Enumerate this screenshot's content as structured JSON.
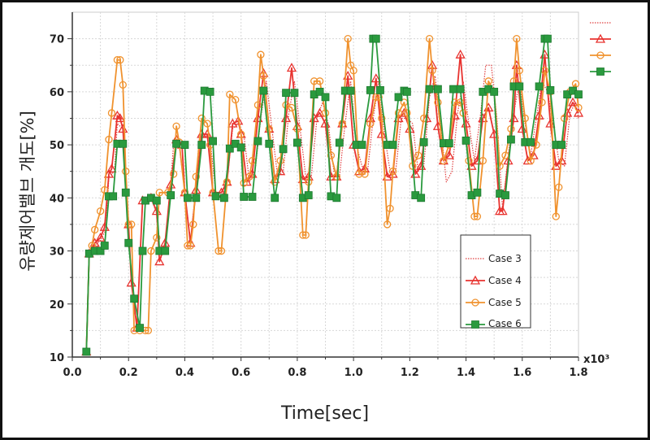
{
  "chart_data": {
    "type": "line",
    "xlabel": "Time[sec]",
    "ylabel": "유량제어밸브 개도[%]",
    "x_multiplier": "x10³",
    "xlim": [
      0.0,
      1.8
    ],
    "ylim": [
      10,
      75
    ],
    "xticks": [
      "0.0",
      "0.2",
      "0.4",
      "0.6",
      "0.8",
      "1.0",
      "1.2",
      "1.4",
      "1.6",
      "1.8"
    ],
    "yticks": [
      "10",
      "20",
      "30",
      "40",
      "50",
      "60",
      "70"
    ],
    "grid": true,
    "legend_position": "lower-right",
    "series": [
      {
        "name": "Case 3",
        "color": "#e04040",
        "style": "dotted",
        "marker": "none",
        "x": [
          0.05,
          0.06,
          0.08,
          0.1,
          0.12,
          0.13,
          0.15,
          0.16,
          0.18,
          0.2,
          0.21,
          0.23,
          0.25,
          0.28,
          0.3,
          0.31,
          0.33,
          0.35,
          0.36,
          0.38,
          0.4,
          0.42,
          0.44,
          0.45,
          0.47,
          0.49,
          0.51,
          0.53,
          0.55,
          0.57,
          0.59,
          0.61,
          0.63,
          0.65,
          0.67,
          0.69,
          0.71,
          0.73,
          0.75,
          0.77,
          0.79,
          0.81,
          0.83,
          0.85,
          0.87,
          0.89,
          0.91,
          0.93,
          0.95,
          0.97,
          0.99,
          1.01,
          1.03,
          1.05,
          1.07,
          1.09,
          1.11,
          1.13,
          1.15,
          1.17,
          1.19,
          1.21,
          1.23,
          1.25,
          1.27,
          1.29,
          1.31,
          1.33,
          1.35,
          1.37,
          1.39,
          1.41,
          1.43,
          1.45,
          1.47,
          1.49,
          1.51,
          1.53,
          1.55,
          1.57,
          1.59,
          1.61,
          1.63,
          1.65,
          1.67,
          1.69,
          1.71,
          1.73,
          1.75,
          1.77,
          1.79,
          1.8
        ],
        "y": [
          11,
          29.5,
          31,
          32,
          34,
          44,
          45,
          54,
          53,
          35,
          24,
          16,
          39,
          40,
          37,
          28,
          31,
          43,
          50,
          50,
          41,
          32,
          42,
          51,
          52,
          51,
          41,
          40,
          43,
          53,
          54,
          52,
          43,
          45,
          55,
          62,
          53,
          44,
          45,
          56,
          62,
          53,
          44,
          44,
          55,
          58,
          54,
          45,
          44,
          54,
          62,
          50,
          46,
          45,
          55,
          62,
          52,
          45,
          45,
          55,
          55,
          54,
          45,
          46,
          59,
          63,
          54,
          43,
          45,
          56,
          62,
          54,
          47,
          55,
          65,
          65,
          55,
          38,
          48,
          56,
          62,
          54,
          48,
          55,
          62,
          60,
          54,
          47,
          46,
          56,
          58,
          55
        ]
      },
      {
        "name": "Case 4",
        "color": "#e8332f",
        "style": "solid",
        "marker": "triangle",
        "x": [
          0.05,
          0.06,
          0.08,
          0.1,
          0.115,
          0.13,
          0.14,
          0.16,
          0.17,
          0.18,
          0.2,
          0.21,
          0.23,
          0.25,
          0.28,
          0.3,
          0.31,
          0.33,
          0.35,
          0.37,
          0.39,
          0.4,
          0.42,
          0.44,
          0.46,
          0.48,
          0.5,
          0.53,
          0.55,
          0.57,
          0.59,
          0.6,
          0.62,
          0.64,
          0.66,
          0.68,
          0.7,
          0.72,
          0.74,
          0.76,
          0.78,
          0.8,
          0.82,
          0.84,
          0.86,
          0.88,
          0.9,
          0.92,
          0.94,
          0.96,
          0.98,
          1.0,
          1.02,
          1.04,
          1.06,
          1.08,
          1.1,
          1.12,
          1.14,
          1.16,
          1.18,
          1.2,
          1.22,
          1.24,
          1.26,
          1.28,
          1.3,
          1.32,
          1.34,
          1.36,
          1.38,
          1.4,
          1.42,
          1.44,
          1.46,
          1.48,
          1.5,
          1.52,
          1.53,
          1.55,
          1.57,
          1.58,
          1.6,
          1.62,
          1.64,
          1.66,
          1.68,
          1.7,
          1.72,
          1.74,
          1.76,
          1.78,
          1.8
        ],
        "y": [
          11,
          29.5,
          31.5,
          32.5,
          34.5,
          44.5,
          45.5,
          55.5,
          55,
          53,
          35,
          24,
          15.5,
          39.5,
          40,
          37.5,
          28,
          31.5,
          42.5,
          51,
          50,
          41,
          31.5,
          41.5,
          52,
          52,
          41,
          41,
          43,
          54,
          54.5,
          52,
          43,
          44.5,
          55,
          63.5,
          53,
          43.5,
          45,
          55,
          64.5,
          53.5,
          43.5,
          44,
          55,
          56,
          54,
          44,
          44,
          54,
          63,
          50,
          45,
          45.5,
          55,
          62.5,
          52,
          44,
          44.5,
          55,
          56,
          53,
          44.5,
          46,
          55,
          65,
          53.5,
          47,
          48,
          55.5,
          67,
          54,
          46,
          47,
          55,
          57,
          52,
          37.5,
          37.5,
          47,
          55,
          65,
          53,
          47,
          48,
          55.5,
          67,
          54,
          46,
          47,
          56,
          58,
          56
        ]
      },
      {
        "name": "Case 5",
        "color": "#f0922e",
        "style": "solid",
        "marker": "circle",
        "x": [
          0.05,
          0.06,
          0.07,
          0.08,
          0.1,
          0.115,
          0.13,
          0.14,
          0.16,
          0.17,
          0.18,
          0.19,
          0.2,
          0.21,
          0.22,
          0.24,
          0.26,
          0.27,
          0.28,
          0.3,
          0.31,
          0.34,
          0.36,
          0.37,
          0.38,
          0.4,
          0.41,
          0.42,
          0.43,
          0.44,
          0.46,
          0.48,
          0.49,
          0.5,
          0.52,
          0.53,
          0.55,
          0.56,
          0.58,
          0.6,
          0.61,
          0.63,
          0.64,
          0.66,
          0.67,
          0.68,
          0.7,
          0.72,
          0.74,
          0.76,
          0.78,
          0.8,
          0.82,
          0.83,
          0.84,
          0.86,
          0.88,
          0.9,
          0.92,
          0.94,
          0.96,
          0.98,
          0.99,
          1.0,
          1.02,
          1.04,
          1.06,
          1.08,
          1.09,
          1.1,
          1.12,
          1.13,
          1.14,
          1.16,
          1.18,
          1.19,
          1.21,
          1.23,
          1.25,
          1.27,
          1.28,
          1.3,
          1.32,
          1.34,
          1.36,
          1.38,
          1.39,
          1.41,
          1.43,
          1.44,
          1.46,
          1.48,
          1.5,
          1.52,
          1.54,
          1.56,
          1.57,
          1.58,
          1.59,
          1.61,
          1.63,
          1.65,
          1.67,
          1.68,
          1.7,
          1.72,
          1.73,
          1.75,
          1.77,
          1.79,
          1.8
        ],
        "y": [
          11,
          29.5,
          31,
          34,
          37.5,
          41.5,
          51,
          56,
          66,
          66,
          61.3,
          45,
          35,
          35,
          15,
          15,
          15,
          15,
          30,
          32.5,
          41,
          41,
          44.5,
          53.5,
          50.5,
          41,
          31,
          31,
          35,
          44,
          55,
          54,
          50,
          41,
          30,
          30,
          43,
          59.5,
          58.5,
          52,
          42.8,
          44,
          47,
          57.5,
          67,
          63,
          53,
          43,
          47,
          57.5,
          57,
          53,
          33,
          33,
          43,
          62,
          62,
          56,
          48,
          44,
          54,
          70,
          65,
          64,
          44.5,
          44.5,
          54,
          59,
          59,
          55,
          35,
          38,
          45,
          56,
          58,
          56,
          46,
          48,
          55,
          70,
          64,
          58,
          47,
          50,
          58,
          58,
          56,
          47,
          36.5,
          36.5,
          47,
          62,
          60,
          46,
          48,
          53,
          62,
          70,
          64,
          55,
          47,
          50,
          58,
          64,
          60,
          36.5,
          42,
          55,
          60,
          61.5,
          57
        ]
      },
      {
        "name": "Case 6",
        "color": "#2a9a3e",
        "style": "solid",
        "marker": "square",
        "x": [
          0.05,
          0.06,
          0.08,
          0.1,
          0.115,
          0.13,
          0.145,
          0.16,
          0.18,
          0.19,
          0.2,
          0.22,
          0.24,
          0.25,
          0.26,
          0.28,
          0.3,
          0.31,
          0.33,
          0.35,
          0.37,
          0.4,
          0.41,
          0.44,
          0.46,
          0.47,
          0.49,
          0.5,
          0.51,
          0.54,
          0.56,
          0.58,
          0.6,
          0.61,
          0.64,
          0.66,
          0.68,
          0.7,
          0.72,
          0.75,
          0.76,
          0.79,
          0.8,
          0.82,
          0.84,
          0.86,
          0.88,
          0.9,
          0.92,
          0.94,
          0.95,
          0.97,
          0.99,
          1.01,
          1.03,
          1.06,
          1.07,
          1.08,
          1.095,
          1.12,
          1.14,
          1.16,
          1.18,
          1.19,
          1.22,
          1.24,
          1.25,
          1.27,
          1.3,
          1.32,
          1.34,
          1.355,
          1.38,
          1.4,
          1.42,
          1.44,
          1.46,
          1.48,
          1.5,
          1.52,
          1.54,
          1.56,
          1.57,
          1.59,
          1.61,
          1.63,
          1.66,
          1.68,
          1.69,
          1.7,
          1.72,
          1.74,
          1.76,
          1.78,
          1.8
        ],
        "y": [
          11,
          29.5,
          30,
          30,
          31,
          40.3,
          40.3,
          50.2,
          50.2,
          41,
          31.5,
          21,
          15.5,
          30,
          39.5,
          40,
          39.5,
          30,
          30,
          40.5,
          50.2,
          50,
          40,
          40,
          50,
          60.2,
          60,
          50.7,
          40.3,
          40,
          49.3,
          50.2,
          49.5,
          40.2,
          40.2,
          50.7,
          60.2,
          50.2,
          40,
          49.2,
          59.8,
          59.8,
          50.4,
          40,
          40.5,
          59.5,
          60,
          59,
          40.3,
          40,
          50.4,
          60.2,
          60.2,
          50,
          50,
          60.3,
          70,
          70,
          60.3,
          50,
          50,
          59,
          60.2,
          60,
          40.5,
          40,
          50.5,
          60.5,
          60.5,
          50.3,
          50.3,
          60.5,
          60.5,
          50.8,
          40.5,
          41,
          60,
          60.5,
          60,
          40.8,
          40.5,
          51,
          61,
          61,
          50.5,
          50.5,
          61,
          70,
          70,
          60.3,
          50,
          50,
          59.5,
          60.2,
          59.5
        ]
      }
    ]
  }
}
